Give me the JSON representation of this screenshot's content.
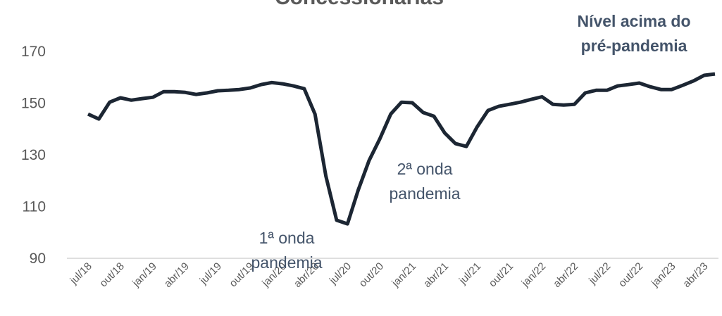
{
  "chart_data": {
    "type": "line",
    "title": "Concessionárias",
    "categories": [
      "jul/18",
      null,
      null,
      "out/18",
      null,
      null,
      "jan/19",
      null,
      null,
      "abr/19",
      null,
      null,
      "jul/19",
      null,
      null,
      "out/19",
      null,
      null,
      "jan/20",
      null,
      null,
      "abr/20",
      null,
      null,
      "jul/20",
      null,
      null,
      "out/20",
      null,
      null,
      "jan/21",
      null,
      null,
      "abr/21",
      null,
      null,
      "jul/21",
      null,
      null,
      "out/21",
      null,
      null,
      "jan/22",
      null,
      null,
      "abr/22",
      null,
      null,
      "jul/22",
      null,
      null,
      "out/22",
      null,
      null,
      "jan/23",
      null,
      null,
      "abr/23",
      null
    ],
    "series": [
      {
        "name": "Concessionárias",
        "color": "#1c2633",
        "values": [
          145.7,
          143.8,
          150.3,
          152,
          151.1,
          151.7,
          152.2,
          154.4,
          154.4,
          154.1,
          153.3,
          153.9,
          154.7,
          154.9,
          155.2,
          155.8,
          157.1,
          157.9,
          157.4,
          156.6,
          155.5,
          145.7,
          121.8,
          104.7,
          103.3,
          116.4,
          127.8,
          136.2,
          145.7,
          150.3,
          150.1,
          146.3,
          144.9,
          138.4,
          134.3,
          133.2,
          140.8,
          147.1,
          148.7,
          149.5,
          150.3,
          151.4,
          152.4,
          149.5,
          149.2,
          149.5,
          153.9,
          154.9,
          154.9,
          156.6,
          157.1,
          157.7,
          156.3,
          155.2,
          155.2,
          156.8,
          158.5,
          160.7,
          161.2
        ]
      }
    ],
    "ylim": [
      90,
      180
    ],
    "yticks": [
      90,
      110,
      130,
      150,
      170
    ],
    "grid": false,
    "annotations": [
      {
        "lines": [
          "Nível acima do",
          "pré-pandemia"
        ],
        "bold": true
      },
      {
        "lines": [
          "1ª onda",
          "pandemia"
        ],
        "bold": false
      },
      {
        "lines": [
          "2ª onda",
          "pandemia"
        ],
        "bold": false
      }
    ]
  }
}
